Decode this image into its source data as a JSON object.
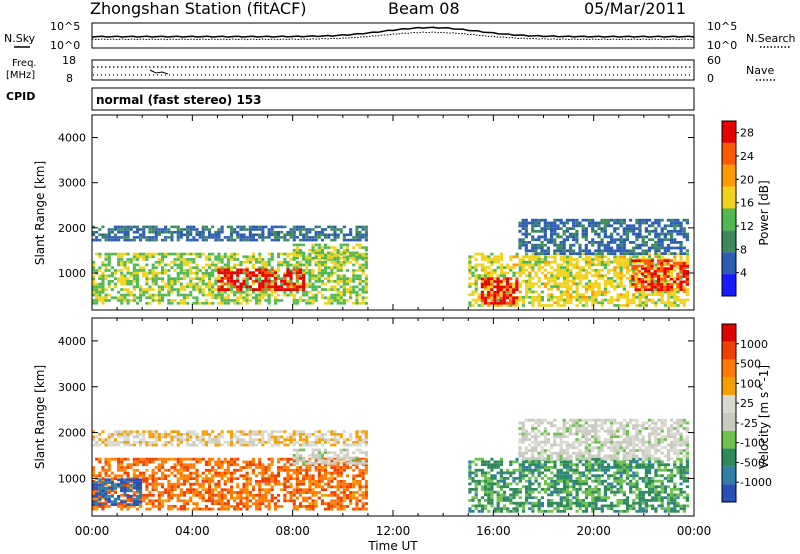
{
  "header": {
    "station": "Zhongshan Station (fitACF)",
    "beam": "Beam 08",
    "date": "05/Mar/2011"
  },
  "noise_panel": {
    "left_label": "N.Sky",
    "right_label": "N.Search",
    "tick_top": "10^5",
    "tick_bottom": "10^0",
    "right_tick_top": "10^5",
    "right_tick_bottom": "10^0"
  },
  "freq_panel": {
    "left_label_1": "Freq.",
    "left_label_2": "[MHz]",
    "right_label": "Nave",
    "left_ticks": [
      "18",
      "8"
    ],
    "right_ticks": [
      "60",
      "0"
    ]
  },
  "cpid": {
    "label": "CPID",
    "text": "normal (fast stereo) 153"
  },
  "colors": {
    "power_scale": [
      "#1a1aff",
      "#2b5db3",
      "#3c8a5a",
      "#4fb84f",
      "#f0d21a",
      "#ff9a00",
      "#ff5a00",
      "#e60000"
    ],
    "velocity_scale": [
      "#2950b8",
      "#2f7ea8",
      "#2f8a5a",
      "#6cc24a",
      "#c9c9c0",
      "#d9d9d0",
      "#f5a000",
      "#ff7a00",
      "#f04000",
      "#e00000"
    ]
  },
  "chart_data": [
    {
      "type": "heatmap",
      "title": "",
      "xlabel": "Time UT",
      "ylabel": "Slant Range [km]",
      "x_ticks": [
        "00:00",
        "04:00",
        "08:00",
        "12:00",
        "16:00",
        "20:00",
        "00:00"
      ],
      "xlim_hours": [
        0,
        24
      ],
      "y_ticks": [
        1000,
        2000,
        3000,
        4000
      ],
      "ylim": [
        180,
        4500
      ],
      "colorbar": {
        "label": "Power [dB]",
        "ticks": [
          4,
          8,
          12,
          16,
          20,
          24,
          28
        ],
        "range": [
          0,
          30
        ]
      },
      "regions": [
        {
          "t0": 0.0,
          "t1": 11.0,
          "r0": 1700,
          "r1": 2050,
          "level": 6
        },
        {
          "t0": 0.0,
          "t1": 11.0,
          "r0": 300,
          "r1": 1450,
          "level": 14
        },
        {
          "t0": 5.0,
          "t1": 8.5,
          "r0": 600,
          "r1": 1100,
          "level": 27
        },
        {
          "t0": 8.0,
          "t1": 11.0,
          "r0": 1300,
          "r1": 1650,
          "level": 14
        },
        {
          "t0": 15.0,
          "t1": 23.8,
          "r0": 250,
          "r1": 1450,
          "level": 16
        },
        {
          "t0": 15.5,
          "t1": 17.0,
          "r0": 300,
          "r1": 900,
          "level": 27
        },
        {
          "t0": 21.5,
          "t1": 23.8,
          "r0": 600,
          "r1": 1300,
          "level": 26
        },
        {
          "t0": 17.0,
          "t1": 23.8,
          "r0": 1400,
          "r1": 2200,
          "level": 6
        }
      ]
    },
    {
      "type": "heatmap",
      "title": "",
      "xlabel": "Time UT",
      "ylabel": "Slant Range [km]",
      "x_ticks": [
        "00:00",
        "04:00",
        "08:00",
        "12:00",
        "16:00",
        "20:00",
        "00:00"
      ],
      "xlim_hours": [
        0,
        24
      ],
      "y_ticks": [
        1000,
        2000,
        3000,
        4000
      ],
      "ylim": [
        180,
        4500
      ],
      "colorbar": {
        "label": "Velocity [m s^-1]",
        "ticks": [
          1000,
          500,
          100,
          25,
          -25,
          -100,
          -500,
          -1000
        ],
        "range": [
          -1000,
          1000
        ]
      },
      "regions": [
        {
          "t0": 0.0,
          "t1": 11.0,
          "r0": 1700,
          "r1": 2050,
          "level": 5
        },
        {
          "t0": 0.0,
          "t1": 11.0,
          "r0": 300,
          "r1": 1450,
          "level": 7
        },
        {
          "t0": 0.0,
          "t1": 2.0,
          "r0": 400,
          "r1": 1000,
          "level": 0
        },
        {
          "t0": 8.0,
          "t1": 11.0,
          "r0": 1300,
          "r1": 1650,
          "level": 4
        },
        {
          "t0": 15.0,
          "t1": 23.8,
          "r0": 250,
          "r1": 1450,
          "level": 2
        },
        {
          "t0": 17.0,
          "t1": 23.8,
          "r0": 1400,
          "r1": 2300,
          "level": 4
        }
      ]
    }
  ]
}
